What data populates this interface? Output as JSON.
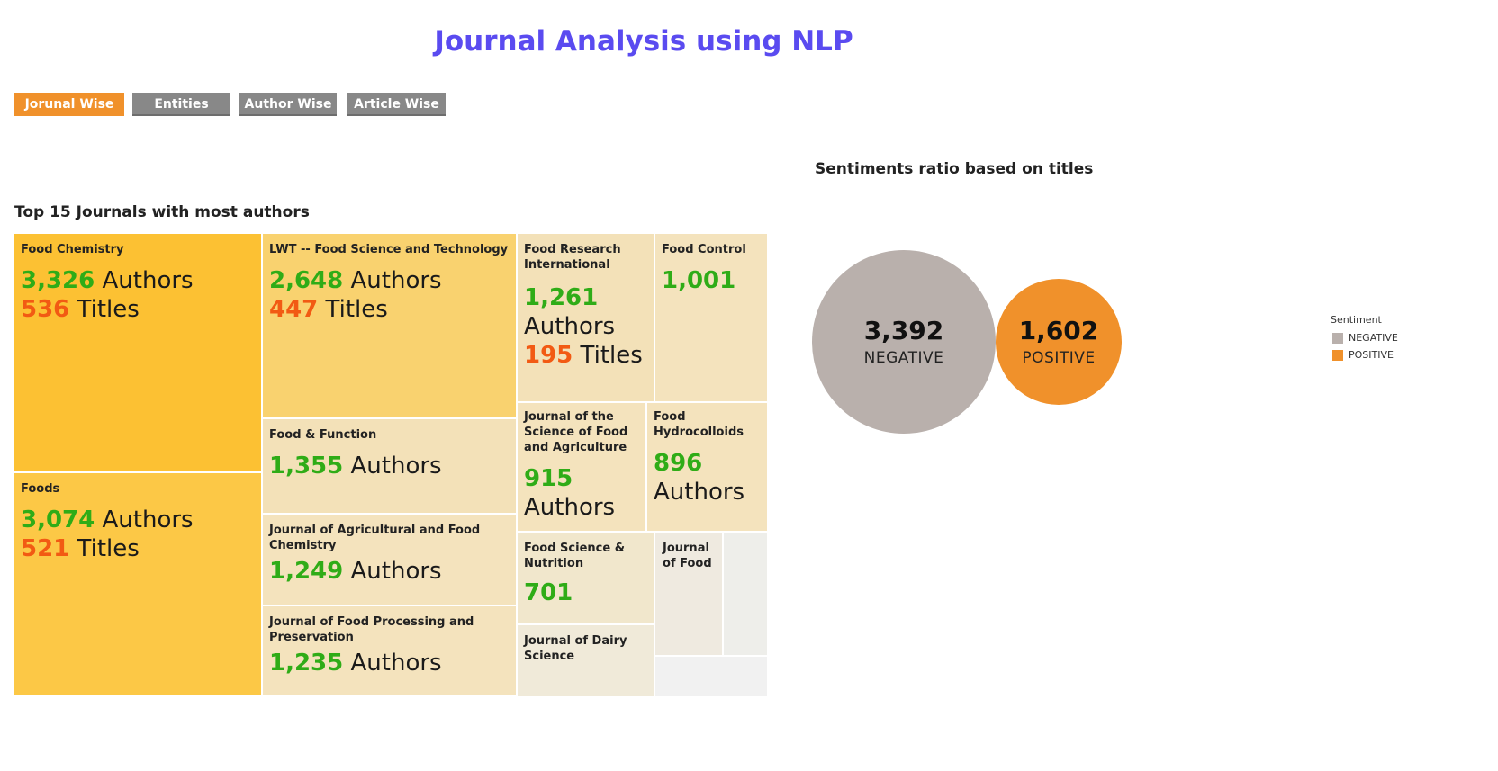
{
  "header": {
    "title": "Journal Analysis using NLP"
  },
  "tabs": [
    {
      "label": "Jorunal Wise",
      "active": true
    },
    {
      "label": "Entities",
      "active": false
    },
    {
      "label": "Author Wise",
      "active": false
    },
    {
      "label": "Article Wise",
      "active": false
    }
  ],
  "treemap": {
    "title": "Top 15 Journals with most authors",
    "authors_word": "Authors",
    "titles_word": "Titles",
    "cells": [
      {
        "name": "Food Chemistry",
        "authors": "3,326",
        "titles": "536"
      },
      {
        "name": "Foods",
        "authors": "3,074",
        "titles": "521"
      },
      {
        "name": "LWT -- Food Science and Technology",
        "authors": "2,648",
        "titles": "447"
      },
      {
        "name": "Food & Function",
        "authors": "1,355"
      },
      {
        "name": "Journal of Agricultural and Food Chemistry",
        "authors": "1,249"
      },
      {
        "name": "Journal of Food Processing and Preservation",
        "authors": "1,235"
      },
      {
        "name": "Food Research International",
        "authors": "1,261",
        "titles": "195"
      },
      {
        "name": "Food Control",
        "authors": "1,001"
      },
      {
        "name": "Journal of the Science of Food and Agriculture",
        "authors": "915"
      },
      {
        "name": "Food Hydrocolloids",
        "authors": "896"
      },
      {
        "name": "Food Science & Nutrition",
        "authors": "701"
      },
      {
        "name": "Journal of Food",
        "authors": ""
      },
      {
        "name": "Journal of Dairy Science",
        "authors": ""
      }
    ]
  },
  "sentiment": {
    "title": "Sentiments ratio based on titles",
    "negative": {
      "value": "3,392",
      "label": "NEGATIVE",
      "color": "#b9b0ac"
    },
    "positive": {
      "value": "1,602",
      "label": "POSITIVE",
      "color": "#f0912b"
    }
  },
  "legend": {
    "title": "Sentiment",
    "items": [
      {
        "label": "NEGATIVE",
        "color": "#b9b0ac"
      },
      {
        "label": "POSITIVE",
        "color": "#f0912b"
      }
    ]
  },
  "colors": {
    "accent_title": "#5a4bf0",
    "active_tab": "#f0912b",
    "inactive_tab": "#888888",
    "authors_number": "#2fac17",
    "titles_number": "#f25a13"
  }
}
